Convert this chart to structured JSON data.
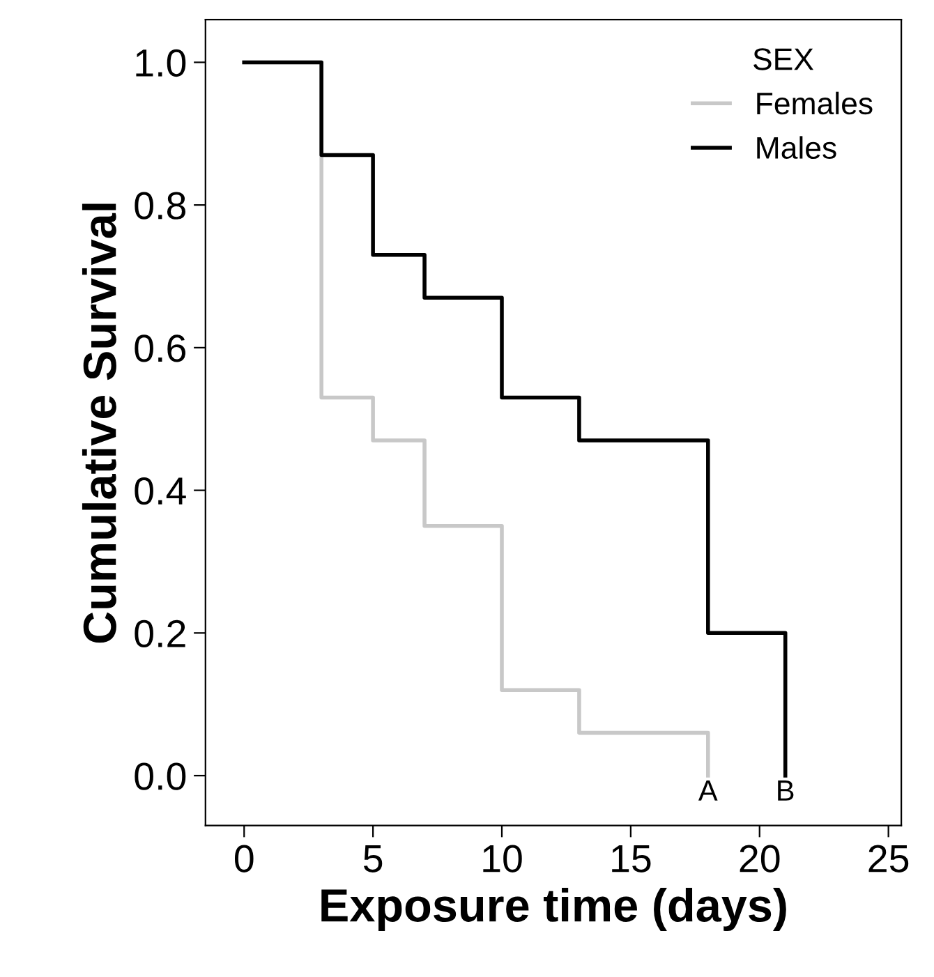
{
  "chart_data": {
    "type": "step",
    "xlabel": "Exposure time (days)",
    "ylabel": "Cumulative Survival",
    "legend_title": "SEX",
    "xlim": [
      -1.5,
      25.5
    ],
    "ylim": [
      -0.07,
      1.06
    ],
    "xticks": [
      0,
      5,
      10,
      15,
      20,
      25
    ],
    "yticks": [
      {
        "value": 0,
        "label": "0.0"
      },
      {
        "value": 0.2,
        "label": "0.2"
      },
      {
        "value": 0.4,
        "label": "0.4"
      },
      {
        "value": 0.6,
        "label": "0.6"
      },
      {
        "value": 0.8,
        "label": "0.8"
      },
      {
        "value": 1,
        "label": "1.0"
      }
    ],
    "grid": false,
    "legend": "top right",
    "marker": "none",
    "line_style": "solid",
    "series": [
      {
        "name": "Females",
        "color": "#c8c8c8",
        "x": [
          0,
          3,
          5,
          7,
          10,
          13,
          18
        ],
        "values": [
          1.0,
          0.53,
          0.47,
          0.35,
          0.12,
          0.06,
          0.0
        ]
      },
      {
        "name": "Males",
        "color": "#000000",
        "x": [
          0,
          3,
          5,
          7,
          10,
          13,
          18,
          21
        ],
        "values": [
          1.0,
          0.87,
          0.73,
          0.67,
          0.53,
          0.47,
          0.2,
          0.0
        ]
      }
    ],
    "annotations": [
      {
        "text": "A",
        "x": 18,
        "y": 0
      },
      {
        "text": "B",
        "x": 21,
        "y": 0
      }
    ]
  }
}
